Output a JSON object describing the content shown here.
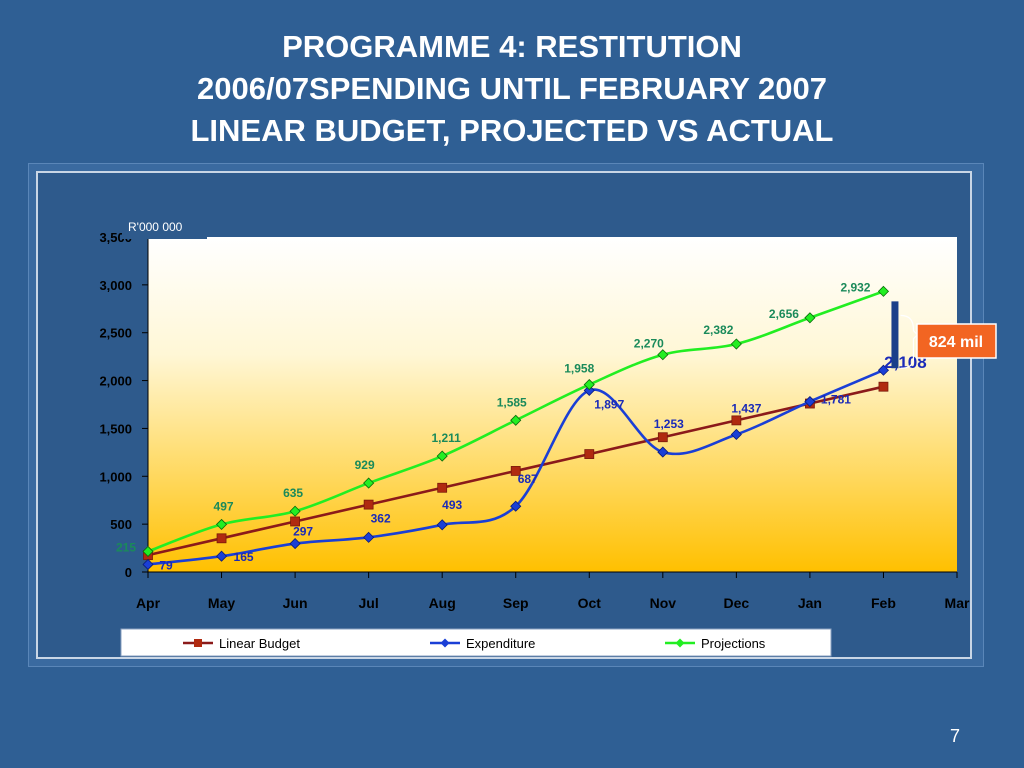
{
  "title_lines": [
    "PROGRAMME 4: RESTITUTION",
    "2006/07SPENDING UNTIL FEBRUARY 2007",
    "LINEAR BUDGET, PROJECTED VS ACTUAL"
  ],
  "page_number": "7",
  "chart_data": {
    "type": "line",
    "unit_label": "R'000 000",
    "categories": [
      "Apr",
      "May",
      "Jun",
      "Jul",
      "Aug",
      "Sep",
      "Oct",
      "Nov",
      "Dec",
      "Jan",
      "Feb",
      "Mar"
    ],
    "ylim": [
      0,
      3500
    ],
    "yticks": [
      0,
      500,
      1000,
      1500,
      2000,
      2500,
      3000,
      3500
    ],
    "ytick_labels": [
      "0",
      "500",
      "1,000",
      "1,500",
      "2,000",
      "2,500",
      "3,000",
      "3,500"
    ],
    "legend_position": "bottom",
    "grid": false,
    "series": [
      {
        "name": "Linear Budget",
        "color": "#8b1a1a",
        "marker": "square",
        "values": [
          176,
          352,
          528,
          704,
          880,
          1056,
          1232,
          1408,
          1584,
          1760,
          1936,
          null
        ],
        "labels": [
          null,
          null,
          null,
          null,
          null,
          null,
          null,
          null,
          null,
          null,
          null,
          null
        ]
      },
      {
        "name": "Expenditure",
        "color": "#1a3fd6",
        "marker": "diamond",
        "values": [
          79,
          165,
          297,
          362,
          493,
          687,
          1897,
          1253,
          1437,
          1781,
          2108,
          null
        ],
        "labels": [
          "79",
          "165",
          "297",
          "362",
          "493",
          "687",
          "1,897",
          "1,253",
          "1,437",
          "1,781",
          "2,108",
          null
        ]
      },
      {
        "name": "Projections",
        "color": "#22ee22",
        "marker": "diamond",
        "values": [
          215,
          497,
          635,
          929,
          1211,
          1585,
          1958,
          2270,
          2382,
          2656,
          2932,
          null
        ],
        "labels": [
          "215",
          "497",
          "635",
          "929",
          "1,211",
          "1,585",
          "1,958",
          "2,270",
          "2,382",
          "2,656",
          "2,932",
          null
        ]
      }
    ],
    "annotations": [
      {
        "text": "824 mil",
        "color": "#f26522"
      }
    ]
  }
}
